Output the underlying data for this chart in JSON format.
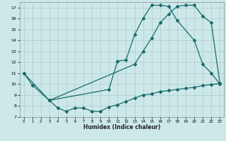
{
  "xlabel": "Humidex (Indice chaleur)",
  "bg_color": "#cce8e8",
  "grid_color": "#aacccc",
  "line_color": "#1a6b6b",
  "ylim": [
    7,
    17.5
  ],
  "xlim": [
    -0.5,
    23.5
  ],
  "yticks": [
    7,
    8,
    9,
    10,
    11,
    12,
    13,
    14,
    15,
    16,
    17
  ],
  "xticks": [
    0,
    1,
    2,
    3,
    4,
    5,
    6,
    7,
    8,
    9,
    10,
    11,
    12,
    13,
    14,
    15,
    16,
    17,
    18,
    19,
    20,
    21,
    22,
    23
  ],
  "curve1_x": [
    0,
    1,
    3,
    10,
    11,
    12,
    13,
    14,
    15,
    16,
    17,
    18,
    20,
    21,
    22,
    23
  ],
  "curve1_y": [
    11,
    9.9,
    8.5,
    9.5,
    12.1,
    12.2,
    14.5,
    16.0,
    17.2,
    17.2,
    17.1,
    15.8,
    14.0,
    11.8,
    11.0,
    10.0
  ],
  "curve2_x": [
    0,
    3,
    13,
    14,
    15,
    16,
    17,
    18,
    19,
    20,
    21,
    22,
    23
  ],
  "curve2_y": [
    11,
    8.5,
    11.8,
    13.0,
    14.2,
    15.6,
    16.4,
    17.1,
    17.2,
    17.2,
    16.2,
    15.6,
    10.1
  ],
  "curve3_x": [
    3,
    4,
    5,
    6,
    7,
    8,
    9,
    10,
    11,
    12,
    13,
    14,
    15,
    16,
    17,
    18,
    19,
    20,
    21,
    22,
    23
  ],
  "curve3_y": [
    8.5,
    7.8,
    7.5,
    7.8,
    7.8,
    7.5,
    7.5,
    7.9,
    8.1,
    8.4,
    8.7,
    9.0,
    9.1,
    9.3,
    9.4,
    9.5,
    9.6,
    9.7,
    9.85,
    9.95,
    10.05
  ]
}
